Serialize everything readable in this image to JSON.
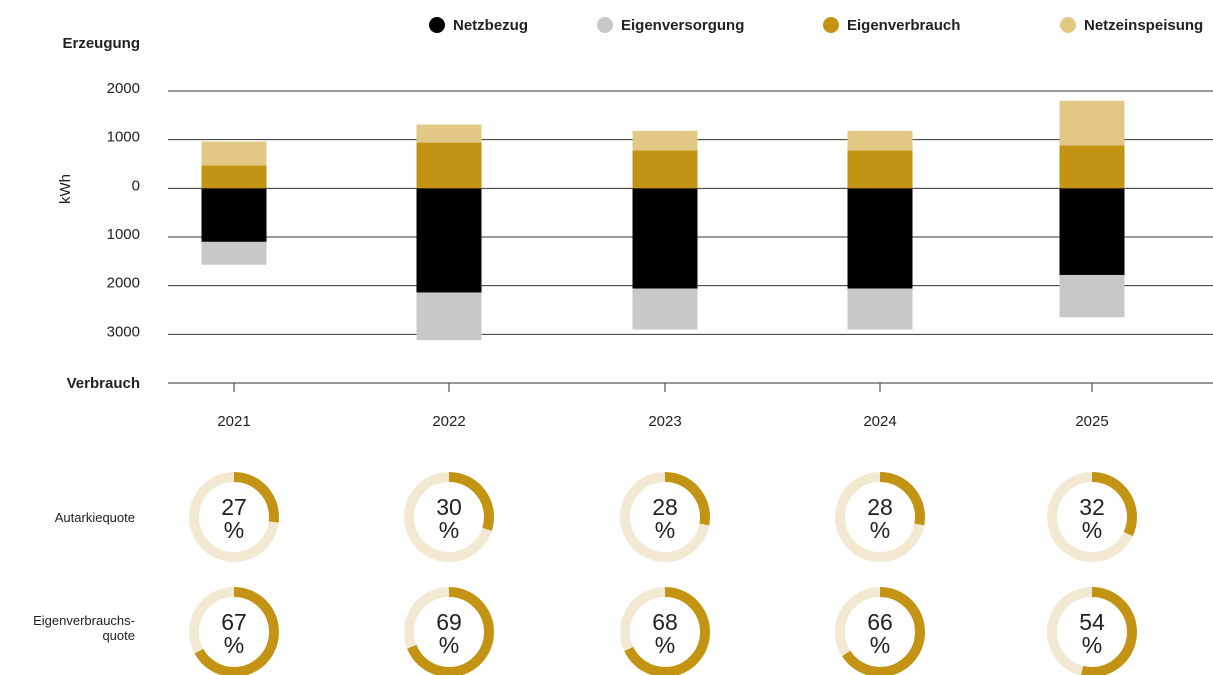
{
  "chart_data": [
    {
      "type": "bar",
      "y_label": "kWh",
      "top_label": "Erzeugung",
      "bottom_label": "Verbrauch",
      "categories": [
        "2021",
        "2022",
        "2023",
        "2024",
        "2025"
      ],
      "series": [
        {
          "name": "Netzbezug",
          "color": "#000000",
          "values": [
            -1100,
            -2140,
            -2060,
            -2060,
            -1780
          ]
        },
        {
          "name": "Eigenversorgung",
          "color": "#c8c8c8",
          "values": [
            -470,
            -980,
            -840,
            -840,
            -870
          ]
        },
        {
          "name": "Eigenverbrauch",
          "color": "#c39314",
          "values": [
            470,
            940,
            780,
            780,
            880
          ]
        },
        {
          "name": "Netzeinspeisung",
          "color": "#e1c985",
          "values": [
            490,
            370,
            400,
            400,
            920
          ]
        }
      ],
      "ylim": [
        -4000,
        2000
      ],
      "yticks": [
        2000,
        1000,
        0,
        {
          "value": -1000,
          "label": "1000"
        },
        {
          "value": -2000,
          "label": "2000"
        },
        {
          "value": -3000,
          "label": "3000"
        }
      ],
      "grid": true
    },
    {
      "type": "donut",
      "unit": "%",
      "color": "#c39314",
      "track_color": "#f3e9d2",
      "rows": [
        {
          "name": "Autarkiequote",
          "values": [
            27,
            30,
            28,
            28,
            32
          ]
        },
        {
          "name": "Eigenverbrauchs-\nquote",
          "values": [
            67,
            69,
            68,
            66,
            54
          ]
        }
      ]
    }
  ]
}
